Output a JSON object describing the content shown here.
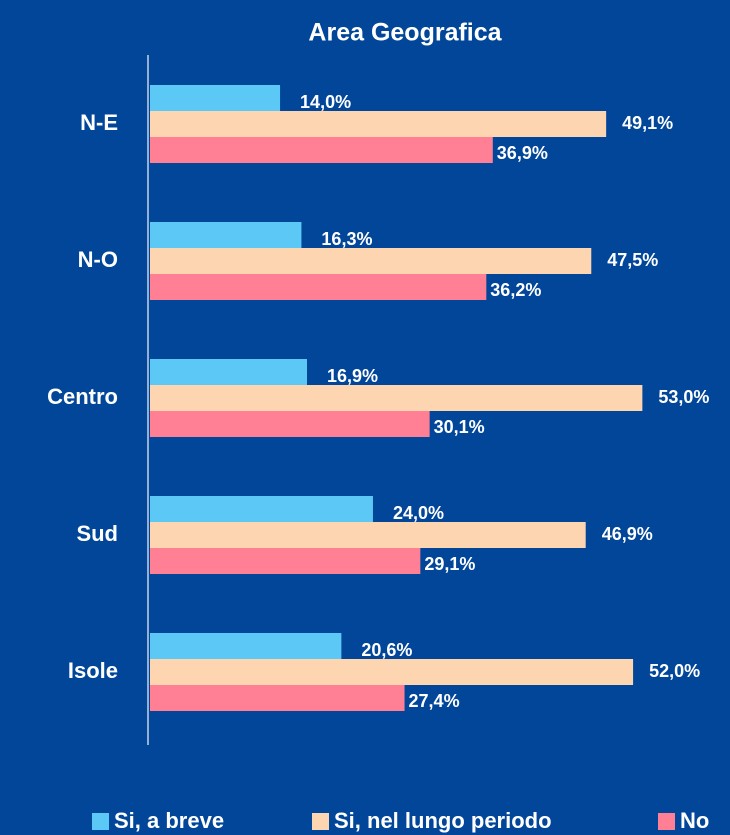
{
  "chart_data": {
    "type": "hbar",
    "title": "Area Geografica",
    "categories": [
      "N-E",
      "N-O",
      "Centro",
      "Sud",
      "Isole"
    ],
    "series": [
      {
        "name": "Si, a breve",
        "color": "#5bc8f5",
        "values": [
          14.0,
          16.3,
          16.9,
          24.0,
          20.6
        ],
        "value_labels": [
          "14,0%",
          "16,3%",
          "16,9%",
          "24,0%",
          "20,6%"
        ]
      },
      {
        "name": "Si, nel lungo periodo",
        "color": "#fdd5b1",
        "values": [
          49.1,
          47.5,
          53.0,
          46.9,
          52.0
        ],
        "value_labels": [
          "49,1%",
          "47,5%",
          "53,0%",
          "46,9%",
          "52,0%"
        ]
      },
      {
        "name": "No",
        "color": "#ff8095",
        "values": [
          36.9,
          36.2,
          30.1,
          29.1,
          27.4
        ],
        "value_labels": [
          "36,9%",
          "36,2%",
          "30,1%",
          "29,1%",
          "27,4%"
        ]
      }
    ]
  }
}
